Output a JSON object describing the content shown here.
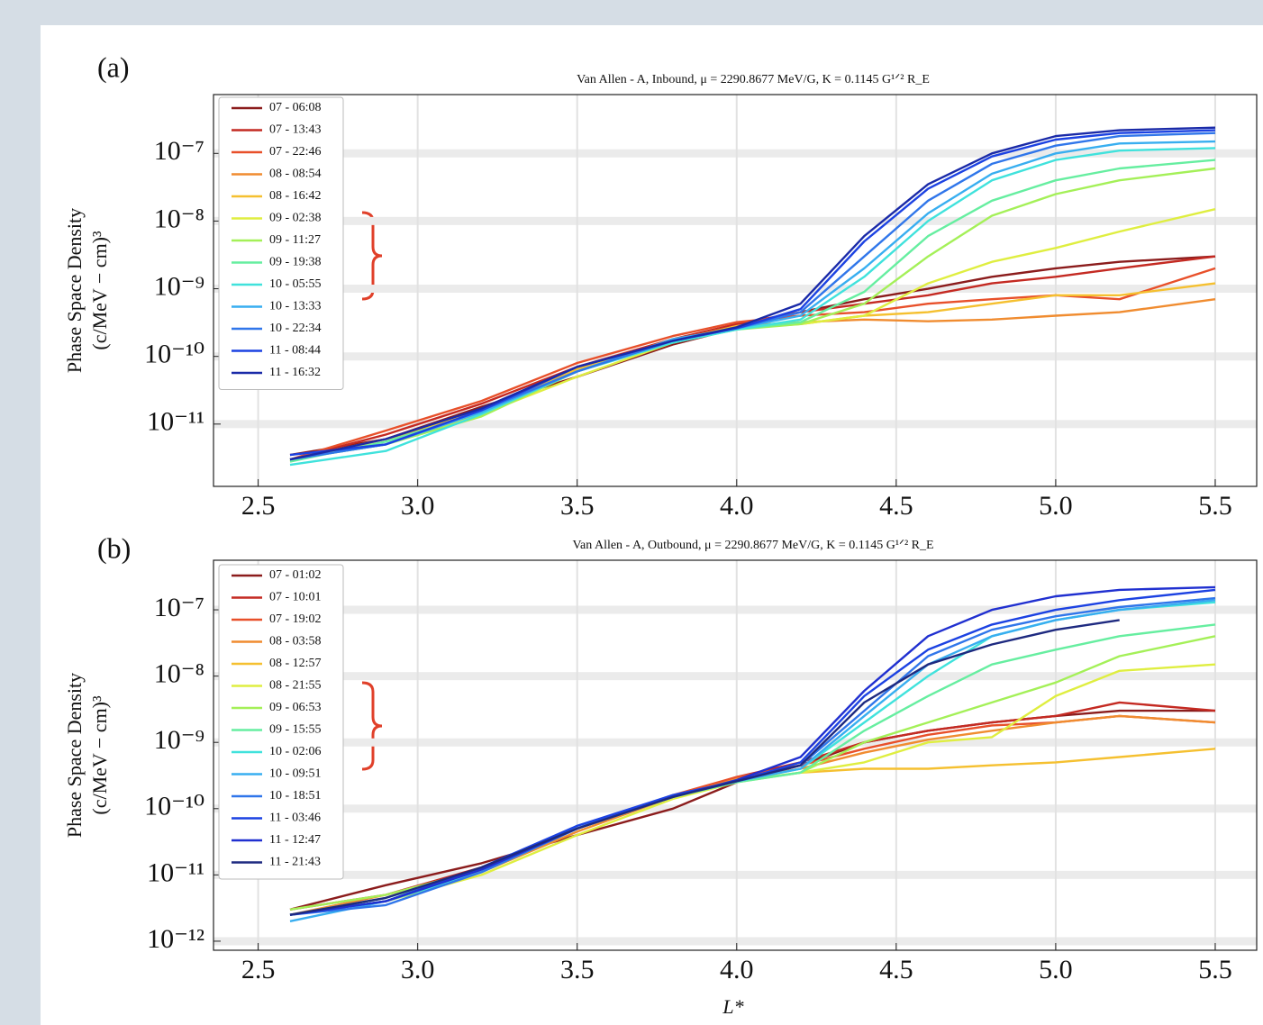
{
  "chart_data": [
    {
      "type": "line",
      "panel_label": "(a)",
      "title": "Van Allen - A, Inbound, μ = 2290.8677 MeV/G, K = 0.1145 G¹ᐟ² R_E",
      "ylabel": [
        "Phase Space Density",
        "(c/MeV − cm)³"
      ],
      "log_y": true,
      "grid": true,
      "legend": "upper left",
      "xlim": [
        2.36,
        5.63
      ],
      "ylim": [
        1.2e-12,
        7.4e-07
      ],
      "xticks": [
        2.5,
        {
          "value": 3,
          "label": "3.0"
        },
        3.5,
        {
          "value": 4,
          "label": "4.0"
        },
        4.5,
        {
          "value": 5,
          "label": "5.0"
        },
        5.5
      ],
      "yticks": [
        {
          "value": 1e-11,
          "label": "10⁻¹¹"
        },
        {
          "value": 1e-10,
          "label": "10⁻¹⁰"
        },
        {
          "value": 1e-09,
          "label": "10⁻⁹"
        },
        {
          "value": 1e-08,
          "label": "10⁻⁸"
        },
        {
          "value": 1e-07,
          "label": "10⁻⁷"
        }
      ],
      "x": [
        2.6,
        2.9,
        3.2,
        3.5,
        3.8,
        4.0,
        4.2,
        4.4,
        4.6,
        4.8,
        5.0,
        5.2,
        5.5
      ],
      "series": [
        {
          "name": "07 - 06:08",
          "color": "#8b1c1c",
          "values": [
            3.5e-12,
            6e-12,
            1.8e-11,
            5e-11,
            1.5e-10,
            2.6e-10,
            4.5e-10,
            7e-10,
            1e-09,
            1.5e-09,
            2e-09,
            2.5e-09,
            3e-09
          ]
        },
        {
          "name": "07 - 13:43",
          "color": "#c42a22",
          "values": [
            3e-12,
            7e-12,
            2e-11,
            7e-11,
            1.8e-10,
            3e-10,
            4.5e-10,
            6e-10,
            8e-10,
            1.2e-09,
            1.5e-09,
            2e-09,
            3e-09
          ]
        },
        {
          "name": "07 - 22:46",
          "color": "#e8502a",
          "values": [
            3e-12,
            8e-12,
            2.2e-11,
            8e-11,
            2e-10,
            3.2e-10,
            4e-10,
            4.5e-10,
            6e-10,
            7e-10,
            8e-10,
            7e-10,
            2e-09
          ]
        },
        {
          "name": "08 - 08:54",
          "color": "#f08c30",
          "values": [
            3e-12,
            6e-12,
            1.5e-11,
            6e-11,
            1.7e-10,
            2.8e-10,
            3.2e-10,
            3.5e-10,
            3.3e-10,
            3.5e-10,
            4e-10,
            4.5e-10,
            7e-10
          ]
        },
        {
          "name": "08 - 16:42",
          "color": "#f5c030",
          "values": [
            2.8e-12,
            6e-12,
            1.6e-11,
            6.5e-11,
            1.7e-10,
            2.8e-10,
            3e-10,
            4e-10,
            4.5e-10,
            6e-10,
            8e-10,
            8e-10,
            1.2e-09
          ]
        },
        {
          "name": "09 - 02:38",
          "color": "#dfee40",
          "values": [
            3e-12,
            5e-12,
            1.4e-11,
            5e-11,
            1.6e-10,
            2.6e-10,
            3e-10,
            4e-10,
            1.2e-09,
            2.5e-09,
            4e-09,
            7e-09,
            1.5e-08
          ]
        },
        {
          "name": "09 - 11:27",
          "color": "#a4f058",
          "values": [
            3e-12,
            5e-12,
            1.3e-11,
            6e-11,
            1.7e-10,
            2.5e-10,
            3e-10,
            6e-10,
            3e-09,
            1.2e-08,
            2.5e-08,
            4e-08,
            6e-08
          ]
        },
        {
          "name": "09 - 19:38",
          "color": "#66eea0",
          "values": [
            2.8e-12,
            5.5e-12,
            1.5e-11,
            6e-11,
            1.6e-10,
            2.5e-10,
            3.2e-10,
            9e-10,
            6e-09,
            2e-08,
            4e-08,
            6e-08,
            8e-08
          ]
        },
        {
          "name": "10 - 05:55",
          "color": "#40e2dc",
          "values": [
            2.5e-12,
            4e-12,
            1.4e-11,
            6e-11,
            1.6e-10,
            2.5e-10,
            3.5e-10,
            1.5e-09,
            1e-08,
            4e-08,
            8e-08,
            1.1e-07,
            1.2e-07
          ]
        },
        {
          "name": "10 - 13:33",
          "color": "#38aef0",
          "values": [
            3e-12,
            5e-12,
            1.5e-11,
            6e-11,
            1.8e-10,
            2.6e-10,
            4e-10,
            2e-09,
            1.3e-08,
            5e-08,
            1e-07,
            1.4e-07,
            1.5e-07
          ]
        },
        {
          "name": "10 - 22:34",
          "color": "#3076ea",
          "values": [
            3e-12,
            5e-12,
            1.6e-11,
            6e-11,
            1.7e-10,
            2.6e-10,
            4.5e-10,
            3e-09,
            2e-08,
            7e-08,
            1.3e-07,
            1.8e-07,
            2e-07
          ]
        },
        {
          "name": "11 - 08:44",
          "color": "#1c42e2",
          "values": [
            3.5e-12,
            5e-12,
            1.6e-11,
            7e-11,
            1.7e-10,
            2.6e-10,
            5e-10,
            5e-09,
            3e-08,
            9e-08,
            1.6e-07,
            2e-07,
            2.2e-07
          ]
        },
        {
          "name": "11 - 16:32",
          "color": "#1a2aa8",
          "values": [
            3e-12,
            6e-12,
            1.7e-11,
            7e-11,
            1.7e-10,
            2.7e-10,
            6e-10,
            6e-09,
            3.5e-08,
            1e-07,
            1.8e-07,
            2.2e-07,
            2.4e-07
          ]
        }
      ]
    },
    {
      "type": "line",
      "panel_label": "(b)",
      "title": "Van Allen - A, Outbound, μ = 2290.8677 MeV/G, K = 0.1145 G¹ᐟ² R_E",
      "ylabel": [
        "Phase Space Density",
        "(c/MeV − cm)³"
      ],
      "xlabel": "L*",
      "log_y": true,
      "grid": true,
      "legend": "upper left",
      "xlim": [
        2.36,
        5.63
      ],
      "ylim": [
        7.3e-13,
        5.6e-07
      ],
      "xticks": [
        2.5,
        {
          "value": 3,
          "label": "3.0"
        },
        3.5,
        {
          "value": 4,
          "label": "4.0"
        },
        4.5,
        {
          "value": 5,
          "label": "5.0"
        },
        5.5
      ],
      "yticks": [
        {
          "value": 1e-12,
          "label": "10⁻¹²"
        },
        {
          "value": 1e-11,
          "label": "10⁻¹¹"
        },
        {
          "value": 1e-10,
          "label": "10⁻¹⁰"
        },
        {
          "value": 1e-09,
          "label": "10⁻⁹"
        },
        {
          "value": 1e-08,
          "label": "10⁻⁸"
        },
        {
          "value": 1e-07,
          "label": "10⁻⁷"
        }
      ],
      "x": [
        2.6,
        2.9,
        3.2,
        3.5,
        3.8,
        4.0,
        4.2,
        4.4,
        4.6,
        4.8,
        5.0,
        5.2,
        5.5
      ],
      "series": [
        {
          "name": "07 - 01:02",
          "color": "#8b1c1c",
          "values": [
            3e-12,
            7e-12,
            1.5e-11,
            4e-11,
            1e-10,
            2.5e-10,
            4.5e-10,
            1e-09,
            1.5e-09,
            2e-09,
            2.5e-09,
            3e-09,
            3e-09
          ]
        },
        {
          "name": "07 - 10:01",
          "color": "#c42a22",
          "values": [
            3e-12,
            5e-12,
            1.3e-11,
            5e-11,
            1.5e-10,
            3e-10,
            5e-10,
            1e-09,
            1.5e-09,
            2e-09,
            2.5e-09,
            4e-09,
            3e-09
          ]
        },
        {
          "name": "07 - 19:02",
          "color": "#e8502a",
          "values": [
            2.5e-12,
            4e-12,
            1.2e-11,
            5e-11,
            1.6e-10,
            3e-10,
            4.5e-10,
            8e-10,
            1.3e-09,
            1.8e-09,
            2e-09,
            2.5e-09,
            2e-09
          ]
        },
        {
          "name": "08 - 03:58",
          "color": "#f08c30",
          "values": [
            2.5e-12,
            5e-12,
            1.1e-11,
            4.5e-11,
            1.5e-10,
            2.8e-10,
            4e-10,
            7e-10,
            1.1e-09,
            1.5e-09,
            2e-09,
            2.5e-09,
            2e-09
          ]
        },
        {
          "name": "08 - 12:57",
          "color": "#f5c030",
          "values": [
            2.5e-12,
            4e-12,
            1.2e-11,
            5e-11,
            1.5e-10,
            2.6e-10,
            3.5e-10,
            4e-10,
            4e-10,
            4.5e-10,
            5e-10,
            6e-10,
            8e-10
          ]
        },
        {
          "name": "08 - 21:55",
          "color": "#dfee40",
          "values": [
            2.5e-12,
            4e-12,
            1e-11,
            4e-11,
            1.4e-10,
            2.5e-10,
            3.5e-10,
            5e-10,
            1e-09,
            1.2e-09,
            5e-09,
            1.2e-08,
            1.5e-08
          ]
        },
        {
          "name": "09 - 06:53",
          "color": "#a4f058",
          "values": [
            3e-12,
            5e-12,
            1.2e-11,
            5e-11,
            1.5e-10,
            2.6e-10,
            3.5e-10,
            1e-09,
            2e-09,
            4e-09,
            8e-09,
            2e-08,
            4e-08
          ]
        },
        {
          "name": "09 - 15:55",
          "color": "#66eea0",
          "values": [
            2.5e-12,
            4.5e-12,
            1.2e-11,
            5e-11,
            1.5e-10,
            2.5e-10,
            3.5e-10,
            1.5e-09,
            5e-09,
            1.5e-08,
            2.5e-08,
            4e-08,
            6e-08
          ]
        },
        {
          "name": "10 - 02:06",
          "color": "#40e2dc",
          "values": [
            2.5e-12,
            4e-12,
            1.1e-11,
            5e-11,
            1.5e-10,
            2.6e-10,
            4e-10,
            2e-09,
            1e-08,
            4e-08,
            7e-08,
            1e-07,
            1.3e-07
          ]
        },
        {
          "name": "10 - 09:51",
          "color": "#38aef0",
          "values": [
            2e-12,
            4e-12,
            1.2e-11,
            5.5e-11,
            1.5e-10,
            2.6e-10,
            4e-10,
            2.5e-09,
            1.5e-08,
            4e-08,
            7e-08,
            1e-07,
            1.4e-07
          ]
        },
        {
          "name": "10 - 18:51",
          "color": "#3076ea",
          "values": [
            2.5e-12,
            3.5e-12,
            1.1e-11,
            5e-11,
            1.6e-10,
            2.6e-10,
            4.5e-10,
            3e-09,
            2e-08,
            5e-08,
            8e-08,
            1.1e-07,
            1.5e-07
          ]
        },
        {
          "name": "11 - 03:46",
          "color": "#1c42e2",
          "values": [
            2.5e-12,
            4e-12,
            1.3e-11,
            5.5e-11,
            1.6e-10,
            2.6e-10,
            5e-10,
            5e-09,
            2.5e-08,
            6e-08,
            1e-07,
            1.4e-07,
            2e-07
          ]
        },
        {
          "name": "11 - 12:47",
          "color": "#2030d0",
          "values": [
            2.5e-12,
            4e-12,
            1.2e-11,
            5e-11,
            1.5e-10,
            2.7e-10,
            6e-10,
            6e-09,
            4e-08,
            1e-07,
            1.6e-07,
            2e-07,
            2.2e-07
          ]
        },
        {
          "name": "11 - 21:43",
          "color": "#1e2a80",
          "values": [
            2.5e-12,
            4.5e-12,
            1.3e-11,
            5e-11,
            1.5e-10,
            2.6e-10,
            4.5e-10,
            4e-09,
            1.5e-08,
            3e-08,
            5e-08,
            7e-08,
            null
          ]
        }
      ]
    }
  ]
}
